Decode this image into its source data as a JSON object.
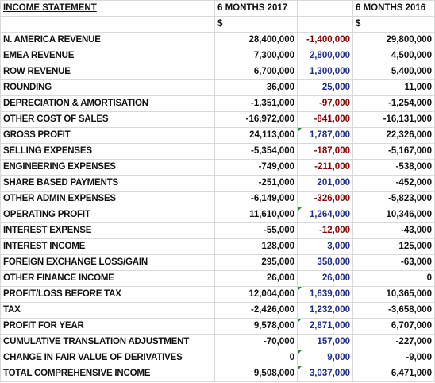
{
  "header": {
    "title": "INCOME STATEMENT",
    "col_2017": "6 MONTHS 2017",
    "col_2016": "6 MONTHS 2016",
    "currency_2017": "$",
    "currency_2016": "$"
  },
  "colors": {
    "negative_diff": "#8b0000",
    "positive_diff": "#1f2d8c",
    "comment_marker": "#2e8b2e"
  },
  "rows": [
    {
      "label": "N. AMERICA REVENUE",
      "v2017": "28,400,000",
      "diff": "-1,400,000",
      "v2016": "29,800,000",
      "sign": "neg",
      "marker": false
    },
    {
      "label": "EMEA REVENUE",
      "v2017": "7,300,000",
      "diff": "2,800,000",
      "v2016": "4,500,000",
      "sign": "pos",
      "marker": false
    },
    {
      "label": "ROW REVENUE",
      "v2017": "6,700,000",
      "diff": "1,300,000",
      "v2016": "5,400,000",
      "sign": "pos",
      "marker": false
    },
    {
      "label": "ROUNDING",
      "v2017": "36,000",
      "diff": "25,000",
      "v2016": "11,000",
      "sign": "pos",
      "marker": false
    },
    {
      "label": "DEPRECIATION & AMORTISATION",
      "v2017": "-1,351,000",
      "diff": "-97,000",
      "v2016": "-1,254,000",
      "sign": "neg",
      "marker": false
    },
    {
      "label": "OTHER COST OF SALES",
      "v2017": "-16,972,000",
      "diff": "-841,000",
      "v2016": "-16,131,000",
      "sign": "neg",
      "marker": false
    },
    {
      "label": "GROSS PROFIT",
      "v2017": "24,113,000",
      "diff": "1,787,000",
      "v2016": "22,326,000",
      "sign": "pos",
      "marker": true
    },
    {
      "label": "SELLING EXPENSES",
      "v2017": "-5,354,000",
      "diff": "-187,000",
      "v2016": "-5,167,000",
      "sign": "neg",
      "marker": false
    },
    {
      "label": "ENGINEERING EXPENSES",
      "v2017": "-749,000",
      "diff": "-211,000",
      "v2016": "-538,000",
      "sign": "neg",
      "marker": false
    },
    {
      "label": "SHARE BASED PAYMENTS",
      "v2017": "-251,000",
      "diff": "201,000",
      "v2016": "-452,000",
      "sign": "pos",
      "marker": false
    },
    {
      "label": "OTHER ADMIN EXPENSES",
      "v2017": "-6,149,000",
      "diff": "-326,000",
      "v2016": "-5,823,000",
      "sign": "neg",
      "marker": false
    },
    {
      "label": "OPERATING PROFIT",
      "v2017": "11,610,000",
      "diff": "1,264,000",
      "v2016": "10,346,000",
      "sign": "pos",
      "marker": true
    },
    {
      "label": "INTEREST EXPENSE",
      "v2017": "-55,000",
      "diff": "-12,000",
      "v2016": "-43,000",
      "sign": "neg",
      "marker": false
    },
    {
      "label": "INTEREST INCOME",
      "v2017": "128,000",
      "diff": "3,000",
      "v2016": "125,000",
      "sign": "pos",
      "marker": false
    },
    {
      "label": "FOREIGN EXCHANGE LOSS/GAIN",
      "v2017": "295,000",
      "diff": "358,000",
      "v2016": "-63,000",
      "sign": "pos",
      "marker": false
    },
    {
      "label": "OTHER FINANCE INCOME",
      "v2017": "26,000",
      "diff": "26,000",
      "v2016": "0",
      "sign": "pos",
      "marker": false
    },
    {
      "label": "PROFIT/LOSS BEFORE TAX",
      "v2017": "12,004,000",
      "diff": "1,639,000",
      "v2016": "10,365,000",
      "sign": "pos",
      "marker": true
    },
    {
      "label": "TAX",
      "v2017": "-2,426,000",
      "diff": "1,232,000",
      "v2016": "-3,658,000",
      "sign": "pos",
      "marker": false
    },
    {
      "label": "PROFIT FOR YEAR",
      "v2017": "9,578,000",
      "diff": "2,871,000",
      "v2016": "6,707,000",
      "sign": "pos",
      "marker": true
    },
    {
      "label": "CUMULATIVE TRANSLATION ADJUSTMENT",
      "v2017": "-70,000",
      "diff": "157,000",
      "v2016": "-227,000",
      "sign": "pos",
      "marker": false
    },
    {
      "label": "CHANGE IN FAIR VALUE OF DERIVATIVES",
      "v2017": "0",
      "diff": "9,000",
      "v2016": "-9,000",
      "sign": "pos",
      "marker": true
    },
    {
      "label": "TOTAL COMPREHENSIVE INCOME",
      "v2017": "9,508,000",
      "diff": "3,037,000",
      "v2016": "6,471,000",
      "sign": "pos",
      "marker": true
    }
  ]
}
